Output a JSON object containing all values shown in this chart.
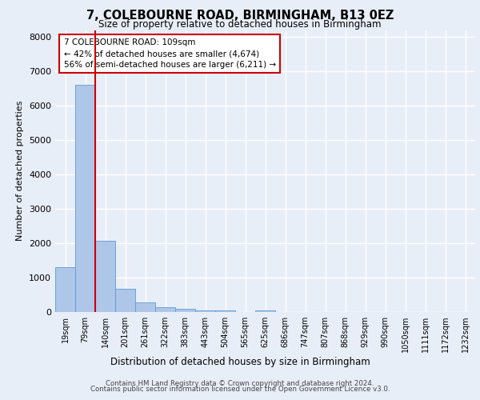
{
  "title_line1": "7, COLEBOURNE ROAD, BIRMINGHAM, B13 0EZ",
  "title_line2": "Size of property relative to detached houses in Birmingham",
  "xlabel": "Distribution of detached houses by size in Birmingham",
  "ylabel": "Number of detached properties",
  "footer_line1": "Contains HM Land Registry data © Crown copyright and database right 2024.",
  "footer_line2": "Contains public sector information licensed under the Open Government Licence v3.0.",
  "categories": [
    "19sqm",
    "79sqm",
    "140sqm",
    "201sqm",
    "261sqm",
    "322sqm",
    "383sqm",
    "443sqm",
    "504sqm",
    "565sqm",
    "625sqm",
    "686sqm",
    "747sqm",
    "807sqm",
    "868sqm",
    "929sqm",
    "990sqm",
    "1050sqm",
    "1111sqm",
    "1172sqm",
    "1232sqm"
  ],
  "values": [
    1300,
    6600,
    2060,
    680,
    280,
    150,
    100,
    55,
    55,
    0,
    55,
    0,
    0,
    0,
    0,
    0,
    0,
    0,
    0,
    0,
    0
  ],
  "bar_color": "#aec6e8",
  "bar_edge_color": "#5b9bd5",
  "annotation_text": "7 COLEBOURNE ROAD: 109sqm\n← 42% of detached houses are smaller (4,674)\n56% of semi-detached houses are larger (6,211) →",
  "vline_color": "#cc0000",
  "annotation_box_color": "#cc0000",
  "ylim": [
    0,
    8200
  ],
  "yticks": [
    0,
    1000,
    2000,
    3000,
    4000,
    5000,
    6000,
    7000,
    8000
  ],
  "bg_color": "#e8eef8",
  "plot_bg_color": "#e8eef8",
  "grid_color": "#ffffff"
}
